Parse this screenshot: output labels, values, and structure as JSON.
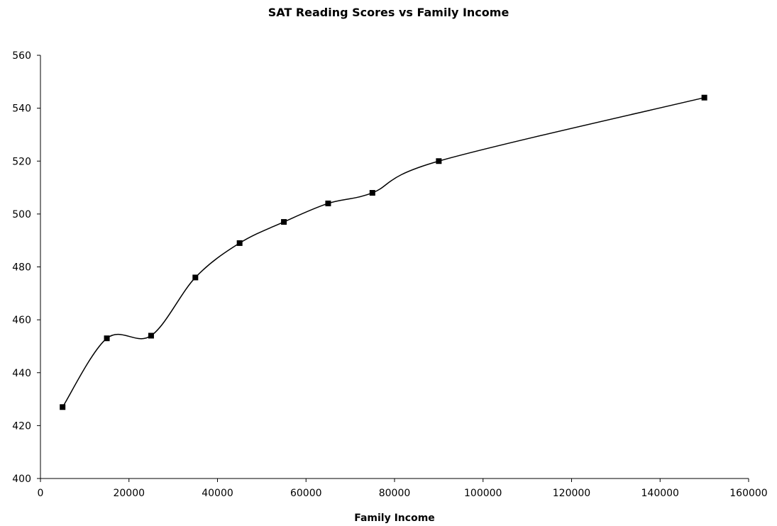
{
  "chart_data": {
    "type": "line",
    "title": "SAT Reading Scores vs Family Income",
    "xlabel": "Family Income",
    "ylabel": "",
    "xlim": [
      0,
      160000
    ],
    "ylim": [
      400,
      560
    ],
    "x_ticks": [
      0,
      20000,
      40000,
      60000,
      80000,
      100000,
      120000,
      140000,
      160000
    ],
    "y_ticks": [
      400,
      420,
      440,
      460,
      480,
      500,
      520,
      540,
      560
    ],
    "grid": false,
    "legend": "none",
    "smoothed": true,
    "marker": "square",
    "line_color": "#000000",
    "series": [
      {
        "x": [
          5000,
          15000,
          25000,
          35000,
          45000,
          55000,
          65000,
          75000,
          90000,
          150000
        ],
        "y": [
          427,
          453,
          454,
          476,
          489,
          497,
          504,
          508,
          520,
          544
        ]
      }
    ]
  }
}
